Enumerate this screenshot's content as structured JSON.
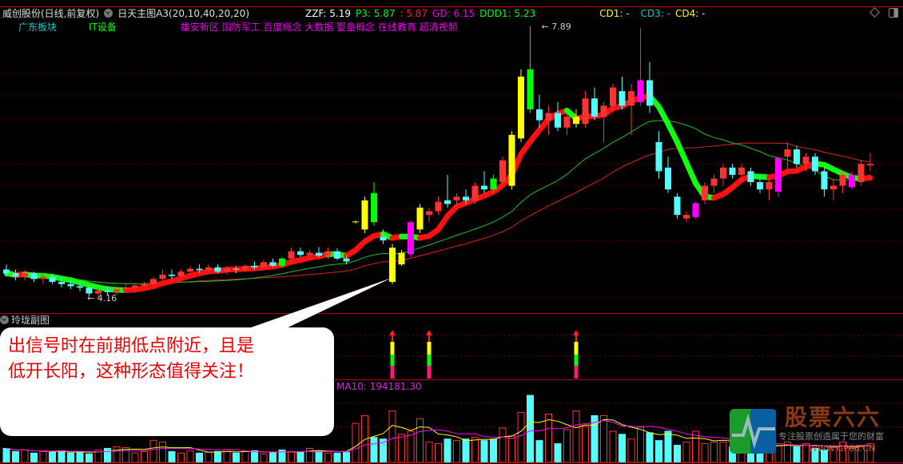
{
  "title_bar": {
    "stock": "威创股份(日线,前复权)",
    "indicator": "日天主图A3(20,10,40,20,20)",
    "zzf": "ZZF: 5.19",
    "p3": "P3: 5.87",
    "p3b": ": 5.87",
    "gd": "GD: 6.15",
    "ddd1": "DDD1: 5.23",
    "cd1": "CD1: -",
    "cd3": "CD3: -",
    "cd4": "CD4: -"
  },
  "concepts": {
    "region": "广东板块",
    "industry": "IT设备",
    "tags": "雄安新区 国防军工 百度概念 大数据 婴童概念 在线教育 超清视频"
  },
  "price_labels": {
    "high": "7.89",
    "low": "4.16"
  },
  "sub_panel": {
    "title": "玲珑副图"
  },
  "volume_panel": {
    "ma10_label": "MA10: 194181.30"
  },
  "callout": {
    "line1": "出信号时在前期低点附近，且是",
    "line2": "低开长阳，这种形态值得关注！"
  },
  "watermark": {
    "brand": "股票六六",
    "slogan": "专注股票创造属于您的财富",
    "url": "WWW.GP66.CN"
  },
  "colors": {
    "up": "#ff3232",
    "down": "#54fcfc",
    "yellow": "#ffff00",
    "magenta": "#ff00ff",
    "green": "#00ff00",
    "grid": "#b00000"
  },
  "chart_data": {
    "type": "candlestick",
    "ylim": [
      4.16,
      7.89
    ],
    "candles": [
      [
        4.55,
        4.62,
        4.45,
        4.5,
        "c"
      ],
      [
        4.5,
        4.55,
        4.4,
        4.45,
        "c"
      ],
      [
        4.45,
        4.55,
        4.4,
        4.5,
        "r"
      ],
      [
        4.5,
        4.52,
        4.38,
        4.42,
        "c"
      ],
      [
        4.42,
        4.5,
        4.35,
        4.45,
        "r"
      ],
      [
        4.45,
        4.48,
        4.35,
        4.38,
        "c"
      ],
      [
        4.38,
        4.45,
        4.3,
        4.35,
        "c"
      ],
      [
        4.35,
        4.4,
        4.28,
        4.32,
        "c"
      ],
      [
        4.32,
        4.38,
        4.25,
        4.3,
        "c"
      ],
      [
        4.3,
        4.33,
        4.18,
        4.22,
        "c"
      ],
      [
        4.22,
        4.3,
        4.16,
        4.26,
        "r"
      ],
      [
        4.26,
        4.32,
        4.2,
        4.24,
        "c"
      ],
      [
        4.24,
        4.3,
        4.2,
        4.28,
        "r"
      ],
      [
        4.28,
        4.34,
        4.24,
        4.3,
        "r"
      ],
      [
        4.3,
        4.36,
        4.26,
        4.33,
        "r"
      ],
      [
        4.33,
        4.38,
        4.3,
        4.35,
        "r"
      ],
      [
        4.35,
        4.45,
        4.32,
        4.42,
        "r"
      ],
      [
        4.42,
        4.55,
        4.4,
        4.48,
        "r"
      ],
      [
        4.48,
        4.55,
        4.42,
        4.46,
        "c"
      ],
      [
        4.46,
        4.55,
        4.44,
        4.52,
        "r"
      ],
      [
        4.52,
        4.6,
        4.5,
        4.56,
        "r"
      ],
      [
        4.56,
        4.62,
        4.5,
        4.54,
        "c"
      ],
      [
        4.54,
        4.62,
        4.5,
        4.58,
        "r"
      ],
      [
        4.58,
        4.62,
        4.5,
        4.52,
        "c"
      ],
      [
        4.52,
        4.6,
        4.48,
        4.56,
        "r"
      ],
      [
        4.56,
        4.6,
        4.5,
        4.55,
        "c"
      ],
      [
        4.55,
        4.62,
        4.52,
        4.6,
        "r"
      ],
      [
        4.6,
        4.66,
        4.55,
        4.58,
        "c"
      ],
      [
        4.58,
        4.68,
        4.55,
        4.65,
        "r"
      ],
      [
        4.65,
        4.7,
        4.58,
        4.6,
        "c"
      ],
      [
        4.6,
        4.72,
        4.58,
        4.7,
        "g"
      ],
      [
        4.7,
        4.85,
        4.65,
        4.8,
        "r"
      ],
      [
        4.8,
        4.85,
        4.72,
        4.75,
        "c"
      ],
      [
        4.75,
        4.82,
        4.7,
        4.78,
        "r"
      ],
      [
        4.78,
        4.86,
        4.72,
        4.74,
        "c"
      ],
      [
        4.74,
        4.85,
        4.7,
        4.8,
        "r"
      ],
      [
        4.8,
        4.84,
        4.68,
        4.7,
        "c"
      ],
      [
        4.7,
        4.75,
        4.62,
        4.66,
        "c"
      ],
      [
        5.2,
        5.22,
        5.18,
        5.21,
        "y"
      ],
      [
        5.1,
        5.55,
        5.05,
        5.5,
        "y"
      ],
      [
        5.6,
        5.75,
        5.15,
        5.2,
        "g"
      ],
      [
        5.0,
        5.1,
        4.9,
        4.95,
        "c"
      ],
      [
        4.85,
        4.9,
        4.35,
        4.38,
        "y"
      ],
      [
        4.62,
        4.82,
        4.6,
        4.78,
        "y"
      ],
      [
        4.76,
        5.22,
        4.72,
        5.2,
        "m"
      ],
      [
        5.1,
        5.45,
        5.05,
        5.4,
        "y"
      ],
      [
        5.3,
        5.4,
        5.2,
        5.35,
        "r"
      ],
      [
        5.35,
        5.55,
        5.3,
        5.48,
        "r"
      ],
      [
        5.45,
        5.85,
        5.4,
        5.5,
        "c"
      ],
      [
        5.5,
        5.6,
        5.42,
        5.55,
        "r"
      ],
      [
        5.55,
        5.65,
        5.45,
        5.5,
        "c"
      ],
      [
        5.5,
        5.75,
        5.45,
        5.7,
        "r"
      ],
      [
        5.7,
        5.9,
        5.6,
        5.65,
        "c"
      ],
      [
        5.65,
        5.85,
        5.6,
        5.8,
        "g"
      ],
      [
        5.75,
        6.1,
        5.7,
        6.05,
        "r"
      ],
      [
        5.7,
        6.45,
        5.65,
        6.4,
        "y"
      ],
      [
        6.35,
        7.3,
        6.3,
        7.2,
        "y"
      ],
      [
        7.3,
        7.89,
        6.7,
        6.75,
        "g"
      ],
      [
        6.75,
        6.95,
        6.5,
        6.6,
        "c"
      ],
      [
        6.6,
        6.8,
        6.4,
        6.7,
        "r"
      ],
      [
        6.7,
        6.85,
        6.45,
        6.5,
        "c"
      ],
      [
        6.5,
        6.7,
        6.4,
        6.65,
        "r"
      ],
      [
        6.65,
        6.75,
        6.5,
        6.55,
        "y"
      ],
      [
        6.55,
        7.0,
        6.5,
        6.9,
        "r"
      ],
      [
        6.9,
        7.05,
        6.6,
        6.65,
        "c"
      ],
      [
        6.65,
        6.85,
        6.3,
        6.8,
        "r"
      ],
      [
        6.8,
        7.1,
        6.7,
        7.05,
        "r"
      ],
      [
        7.0,
        7.2,
        6.75,
        6.8,
        "c"
      ],
      [
        6.8,
        7.1,
        6.4,
        7.0,
        "r"
      ],
      [
        6.85,
        7.87,
        6.8,
        7.15,
        "m"
      ],
      [
        7.15,
        7.4,
        6.7,
        6.8,
        "c"
      ],
      [
        6.3,
        6.45,
        5.8,
        5.9,
        "c"
      ],
      [
        5.95,
        6.1,
        5.6,
        5.65,
        "c"
      ],
      [
        5.55,
        5.6,
        5.25,
        5.3,
        "c"
      ],
      [
        5.25,
        5.35,
        5.2,
        5.3,
        "r"
      ],
      [
        5.27,
        5.48,
        5.25,
        5.46,
        "m"
      ],
      [
        5.5,
        5.75,
        5.45,
        5.7,
        "r"
      ],
      [
        5.7,
        5.85,
        5.6,
        5.8,
        "r"
      ],
      [
        5.8,
        6.0,
        5.7,
        5.95,
        "r"
      ],
      [
        5.95,
        6.0,
        5.8,
        5.85,
        "c"
      ],
      [
        5.85,
        6.0,
        5.75,
        5.95,
        "r"
      ],
      [
        5.9,
        5.95,
        5.7,
        5.75,
        "c"
      ],
      [
        5.75,
        5.85,
        5.6,
        5.65,
        "c"
      ],
      [
        5.65,
        5.8,
        5.5,
        5.75,
        "r"
      ],
      [
        5.62,
        6.1,
        5.55,
        6.08,
        "m"
      ],
      [
        6.1,
        6.3,
        5.9,
        6.2,
        "r"
      ],
      [
        6.2,
        6.25,
        5.95,
        6.0,
        "c"
      ],
      [
        6.0,
        6.15,
        5.9,
        6.1,
        "r"
      ],
      [
        6.1,
        6.15,
        5.85,
        5.9,
        "c"
      ],
      [
        5.9,
        5.95,
        5.55,
        5.65,
        "c"
      ],
      [
        5.65,
        5.8,
        5.5,
        5.7,
        "r"
      ],
      [
        5.7,
        5.9,
        5.6,
        5.85,
        "r"
      ],
      [
        5.85,
        5.9,
        5.65,
        5.68,
        "m"
      ],
      [
        5.75,
        6.05,
        5.7,
        6.0,
        "r"
      ],
      [
        6.0,
        6.15,
        5.9,
        5.98,
        "r"
      ]
    ],
    "volume": [
      90,
      70,
      80,
      60,
      70,
      65,
      75,
      60,
      70,
      55,
      80,
      90,
      100,
      95,
      60,
      70,
      140,
      130,
      70,
      60,
      75,
      60,
      65,
      70,
      80,
      60,
      70,
      75,
      55,
      60,
      80,
      70,
      65,
      90,
      75,
      60,
      60,
      65,
      250,
      300,
      160,
      150,
      330,
      180,
      200,
      280,
      130,
      120,
      150,
      140,
      150,
      160,
      140,
      150,
      220,
      170,
      320,
      430,
      140,
      310,
      120,
      210,
      330,
      230,
      300,
      300,
      200,
      180,
      150,
      230,
      190,
      140,
      200,
      110,
      130,
      200,
      120,
      130,
      130,
      100,
      110,
      120,
      100,
      90,
      110,
      130,
      100,
      120,
      90,
      80,
      100,
      130,
      90,
      110,
      120
    ],
    "signals": [
      42,
      46,
      62
    ]
  }
}
